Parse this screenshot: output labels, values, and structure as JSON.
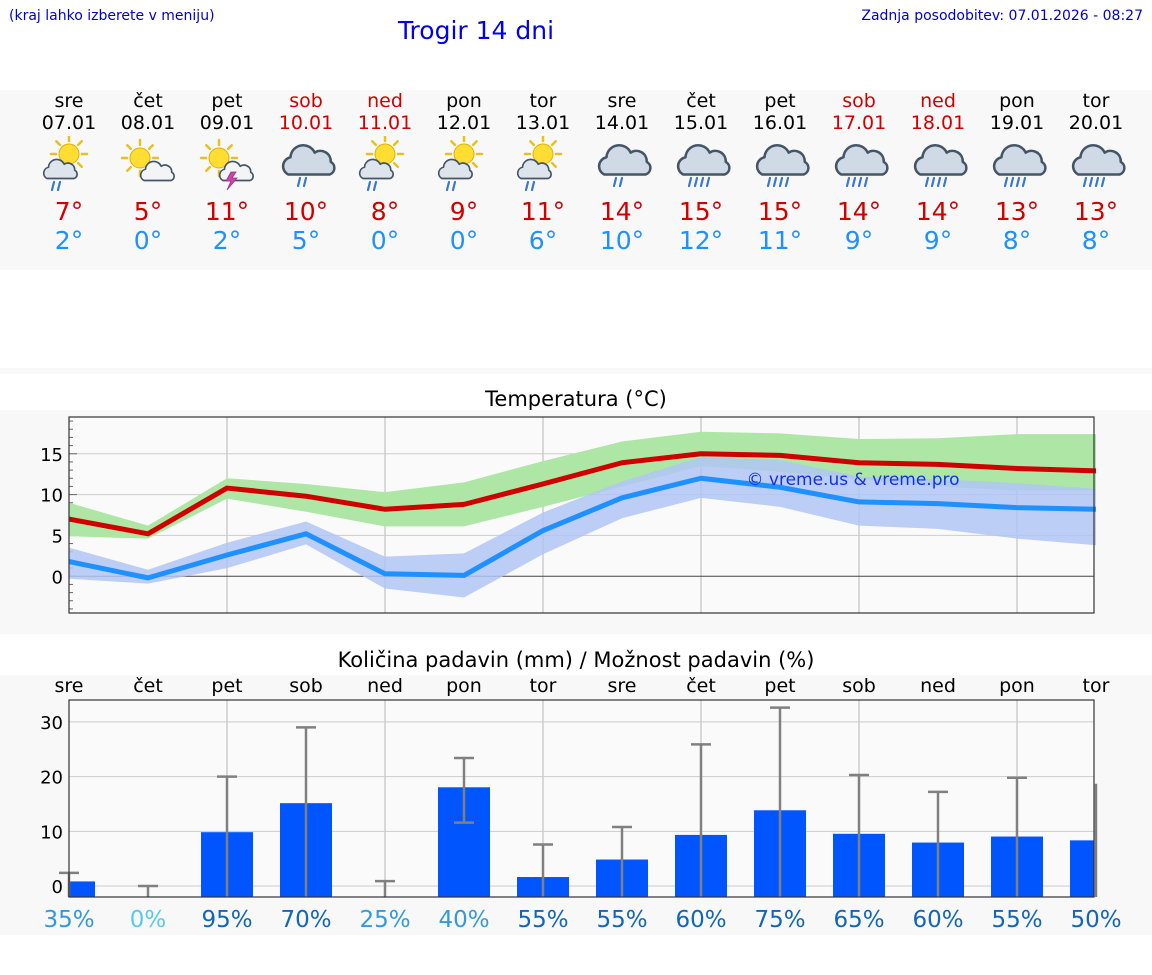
{
  "header": {
    "menu_hint": "(kraj lahko izberete v meniju)",
    "title": "Trogir 14 dni",
    "updated": "Zadnja posodobitev: 07.01.2026 - 08:27"
  },
  "days": [
    {
      "name": "sre",
      "date": "07.01",
      "max": "7°",
      "min": "2°",
      "icon": "sun-cloud-rain-icon",
      "weekend": false
    },
    {
      "name": "čet",
      "date": "08.01",
      "max": "5°",
      "min": "0°",
      "icon": "sun-cloud-icon",
      "weekend": false
    },
    {
      "name": "pet",
      "date": "09.01",
      "max": "11°",
      "min": "2°",
      "icon": "sun-cloud-thunder-icon",
      "weekend": false
    },
    {
      "name": "sob",
      "date": "10.01",
      "max": "10°",
      "min": "5°",
      "icon": "cloud-rain-icon",
      "weekend": true
    },
    {
      "name": "ned",
      "date": "11.01",
      "max": "8°",
      "min": "0°",
      "icon": "sun-cloud-rain-icon",
      "weekend": true
    },
    {
      "name": "pon",
      "date": "12.01",
      "max": "9°",
      "min": "0°",
      "icon": "sun-cloud-rain-icon",
      "weekend": false
    },
    {
      "name": "tor",
      "date": "13.01",
      "max": "11°",
      "min": "6°",
      "icon": "sun-cloud-rain-icon",
      "weekend": false
    },
    {
      "name": "sre",
      "date": "14.01",
      "max": "14°",
      "min": "10°",
      "icon": "cloud-rain-icon",
      "weekend": false
    },
    {
      "name": "čet",
      "date": "15.01",
      "max": "15°",
      "min": "12°",
      "icon": "cloud-heavy-rain-icon",
      "weekend": false
    },
    {
      "name": "pet",
      "date": "16.01",
      "max": "15°",
      "min": "11°",
      "icon": "cloud-heavy-rain-icon",
      "weekend": false
    },
    {
      "name": "sob",
      "date": "17.01",
      "max": "14°",
      "min": "9°",
      "icon": "cloud-heavy-rain-icon",
      "weekend": true
    },
    {
      "name": "ned",
      "date": "18.01",
      "max": "14°",
      "min": "9°",
      "icon": "cloud-heavy-rain-icon",
      "weekend": true
    },
    {
      "name": "pon",
      "date": "19.01",
      "max": "13°",
      "min": "8°",
      "icon": "cloud-heavy-rain-icon",
      "weekend": false
    },
    {
      "name": "tor",
      "date": "20.01",
      "max": "13°",
      "min": "8°",
      "icon": "cloud-heavy-rain-icon",
      "weekend": false
    }
  ],
  "colors": {
    "max": "#d00000",
    "min": "#1e90ff",
    "weekend": "#d00000",
    "bar": "#0055ff",
    "max_band": "#aee6a6",
    "min_band": "#b0c4f4"
  },
  "chart_data": [
    {
      "type": "line",
      "title": "Temperatura (°C)",
      "watermark": "© vreme.us & vreme.pro",
      "ylim": [
        -4.5,
        19.5
      ],
      "yticks": [
        0,
        5,
        10,
        15
      ],
      "grid": true,
      "x_count": 14,
      "series": [
        {
          "name": "max",
          "values": [
            7,
            5.2,
            10.8,
            9.8,
            8.2,
            8.8,
            11.3,
            13.9,
            15,
            14.8,
            13.9,
            13.7,
            13.2,
            12.9
          ],
          "band_low": [
            4.9,
            4.6,
            9.5,
            7.9,
            6.1,
            6.1,
            8.5,
            11,
            13.5,
            12.8,
            11.9,
            11,
            10.5,
            10.5
          ],
          "band_high": [
            9,
            6.2,
            12,
            11.3,
            10.3,
            11.5,
            14.1,
            16.5,
            17.7,
            17.5,
            16.8,
            16.9,
            17.4,
            17.4
          ]
        },
        {
          "name": "min",
          "values": [
            1.8,
            -0.2,
            2.6,
            5.2,
            0.3,
            0.1,
            5.6,
            9.6,
            12,
            10.9,
            9.1,
            8.9,
            8.4,
            8.2
          ],
          "band_low": [
            -0.3,
            -0.9,
            1,
            3.9,
            -1.5,
            -2.6,
            2.7,
            7.1,
            9.6,
            8.5,
            6.2,
            5.8,
            4.6,
            3.8
          ],
          "band_high": [
            3.5,
            0.8,
            4.1,
            6.7,
            2.4,
            2.8,
            7.8,
            11.6,
            14.6,
            14.2,
            12.2,
            11.9,
            11.4,
            10.7
          ]
        }
      ]
    },
    {
      "type": "bar",
      "title": "Količina padavin (mm) / Možnost padavin (%)",
      "categories": [
        "sre",
        "čet",
        "pet",
        "sob",
        "ned",
        "pon",
        "tor",
        "sre",
        "čet",
        "pet",
        "sob",
        "ned",
        "pon",
        "tor"
      ],
      "values": [
        0.3,
        0,
        9.3,
        14.6,
        0,
        17.5,
        1.1,
        4.3,
        8.8,
        13.3,
        9,
        7.4,
        8.5,
        7.8
      ],
      "err_low": [
        0,
        0,
        0,
        0,
        0,
        11.6,
        0,
        0,
        0,
        0,
        0,
        0,
        0,
        0
      ],
      "err_high": [
        2.4,
        0,
        20,
        29,
        0.9,
        23.4,
        7.6,
        10.8,
        25.9,
        32.6,
        20.3,
        17.2,
        19.8,
        18.7
      ],
      "probability": [
        "35%",
        "0%",
        "95%",
        "70%",
        "25%",
        "40%",
        "55%",
        "55%",
        "60%",
        "75%",
        "65%",
        "60%",
        "55%",
        "50%"
      ],
      "probability_colors": [
        "#3399dd",
        "#55ccee",
        "#1166bb",
        "#1166bb",
        "#3399dd",
        "#3399dd",
        "#1166bb",
        "#1166bb",
        "#1166bb",
        "#1166bb",
        "#1166bb",
        "#1166bb",
        "#1166bb",
        "#1166bb"
      ],
      "ylim": [
        -2,
        34
      ],
      "yticks": [
        0,
        10,
        20,
        30
      ],
      "ylabel": "mm",
      "grid": true
    }
  ]
}
